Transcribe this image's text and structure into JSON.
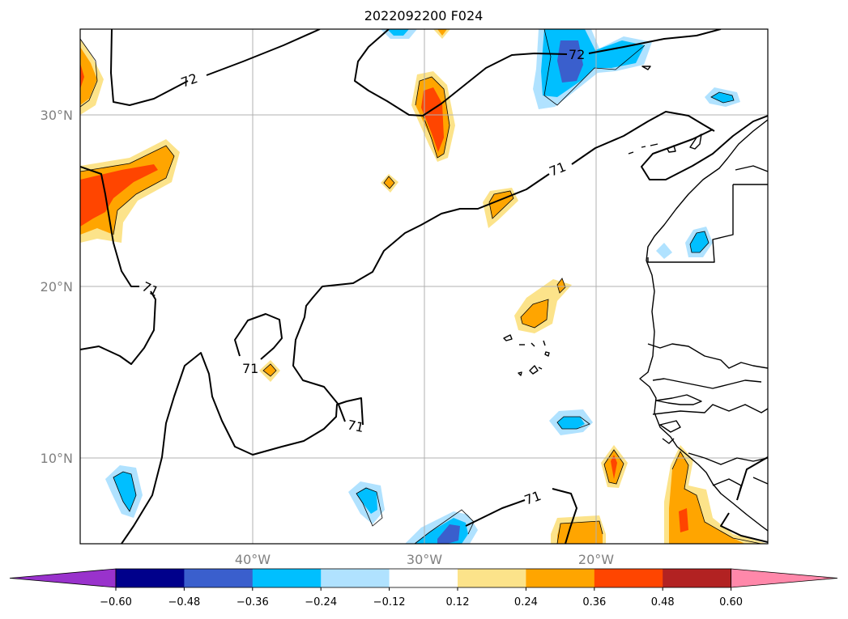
{
  "title": "2022092200 F024",
  "lat_labels": [
    "30°N",
    "20°N",
    "10°N"
  ],
  "lon_labels": [
    "40°W",
    "30°W",
    "20°W"
  ],
  "contour_labels": [
    "72",
    "72",
    "71",
    "71",
    "71",
    "71",
    "71"
  ],
  "colorbar": {
    "ticks": [
      "−0.60",
      "−0.48",
      "−0.36",
      "−0.24",
      "−0.12",
      "0.12",
      "0.24",
      "0.36",
      "0.48",
      "0.60"
    ],
    "colors": [
      "#9932cc",
      "#00008b",
      "#3a5fcd",
      "#00bfff",
      "#b0e2ff",
      "#ffffff",
      "#fce38a",
      "#ffa500",
      "#ff4500",
      "#b22222",
      "#ff88aa"
    ]
  }
}
